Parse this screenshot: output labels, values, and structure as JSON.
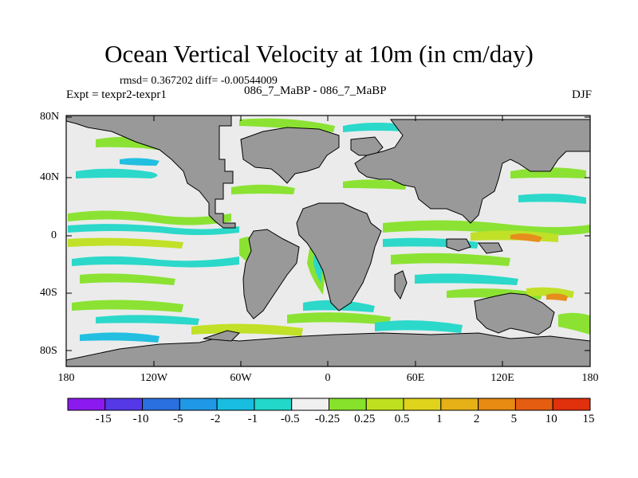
{
  "title": "Ocean Vertical Velocity at 10m (in cm/day)",
  "stats": "rmsd= 0.367202 diff= -0.00544009",
  "experiment": "Expt = texpr2-texpr1",
  "case": "086_7_MaBP - 086_7_MaBP",
  "season": "DJF",
  "map": {
    "lon_range": [
      -180,
      180
    ],
    "lat_range": [
      -90,
      90
    ],
    "lat_ticks": [
      "80N",
      "40N",
      "0",
      "40S",
      "80S"
    ],
    "lon_ticks": [
      "180",
      "120W",
      "60W",
      "0",
      "60E",
      "120E",
      "180"
    ],
    "land_color": "#999999",
    "background_field_color": "#ebebeb"
  },
  "colorbar": {
    "labels": [
      "-15",
      "-10",
      "-5",
      "-2",
      "-1",
      "-0.5",
      "-0.25",
      "0.25",
      "0.5",
      "1",
      "2",
      "5",
      "10",
      "15"
    ],
    "colors": [
      "#8c1aef",
      "#5538e6",
      "#2a6fe0",
      "#1f99e6",
      "#18bde0",
      "#21d8c9",
      "#f0f0f0",
      "#86e22a",
      "#bfe01e",
      "#e0d31b",
      "#e6b117",
      "#e68a12",
      "#e45d10",
      "#e1300c"
    ]
  }
}
